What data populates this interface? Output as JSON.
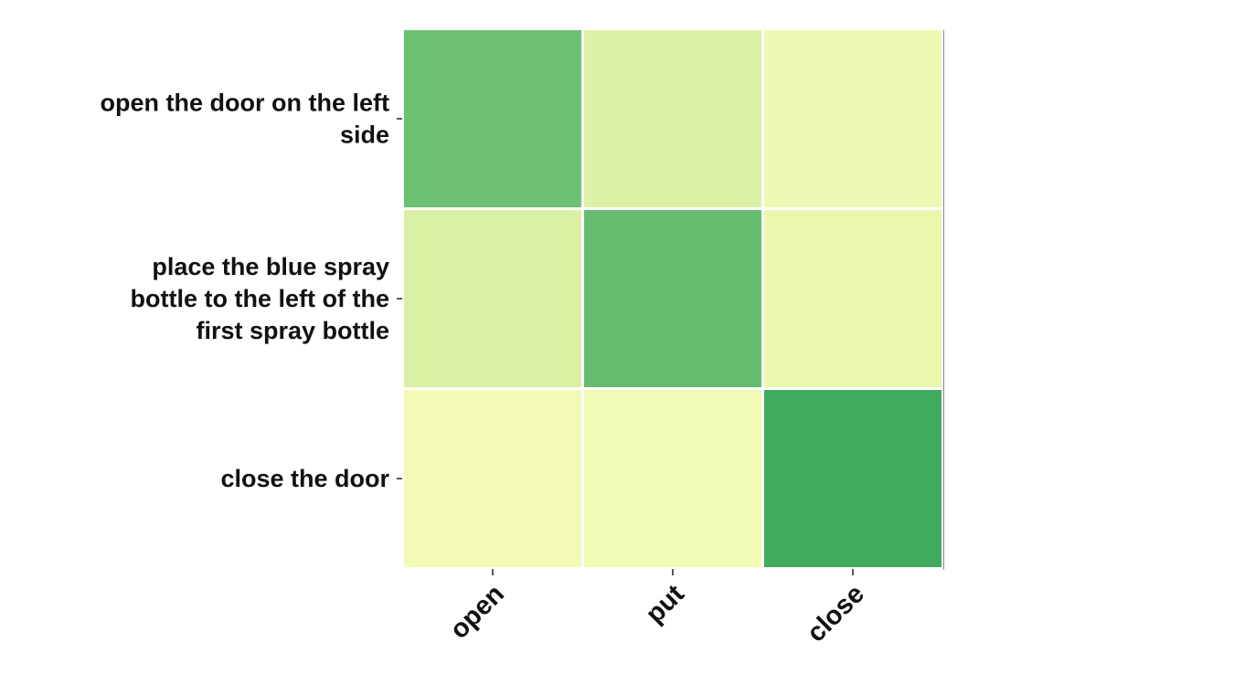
{
  "chart_data": {
    "type": "heatmap",
    "rows": [
      [
        "open the door on the left",
        "side"
      ],
      [
        "place the blue spray",
        "bottle to the left of the",
        "first spray bottle"
      ],
      [
        "close the door"
      ]
    ],
    "columns": [
      "open",
      "put",
      "close"
    ],
    "values": [
      [
        0.78,
        0.22,
        0.06
      ],
      [
        0.25,
        0.8,
        0.11
      ],
      [
        0.04,
        0.05,
        0.9
      ]
    ],
    "colormap": "YlGn",
    "colors": {
      "low": "#f7fcb9",
      "mid": "#d9f0a3",
      "high": "#2f9650"
    },
    "grid": false,
    "legend": "none"
  }
}
